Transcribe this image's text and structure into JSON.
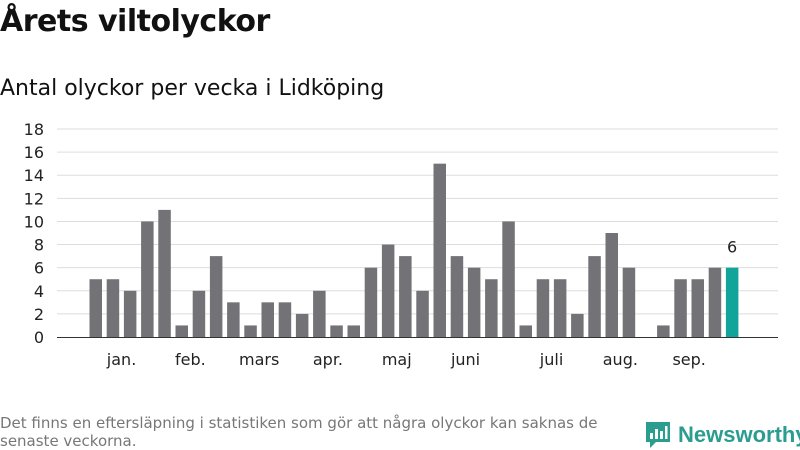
{
  "title": "Årets viltolyckor",
  "subtitle": "Antal olyckor per vecka i Lidköping",
  "footnote": "Det finns en eftersläpning i statistiken som gör att några olyckor kan saknas de senaste veckorna.",
  "brand": {
    "name": "Newsworthy",
    "icon": "newsworthy-logo-icon",
    "color": "#2a9d8f"
  },
  "chart_data": {
    "type": "bar",
    "title": "Antal olyckor per vecka i Lidköping",
    "xlabel": "",
    "ylabel": "",
    "ylim": [
      0,
      18
    ],
    "yticks": [
      0,
      2,
      4,
      6,
      8,
      10,
      12,
      14,
      16,
      18
    ],
    "grid": true,
    "legend": "none",
    "bar_color": "#737277",
    "highlight_color": "#12a39a",
    "values": [
      5,
      5,
      4,
      10,
      11,
      1,
      4,
      7,
      3,
      1,
      3,
      3,
      2,
      4,
      1,
      1,
      6,
      8,
      7,
      4,
      15,
      7,
      6,
      5,
      10,
      1,
      5,
      5,
      2,
      7,
      9,
      6,
      0,
      1,
      5,
      5,
      6,
      6
    ],
    "highlight_index": 37,
    "highlight_label": "6",
    "month_labels": [
      {
        "label": "jan.",
        "at": 1.5
      },
      {
        "label": "feb.",
        "at": 5.5
      },
      {
        "label": "mars",
        "at": 9.5
      },
      {
        "label": "apr.",
        "at": 13.5
      },
      {
        "label": "maj",
        "at": 17.5
      },
      {
        "label": "juni",
        "at": 21.5
      },
      {
        "label": "juli",
        "at": 26.5
      },
      {
        "label": "aug.",
        "at": 30.5
      },
      {
        "label": "sep.",
        "at": 34.5
      }
    ]
  }
}
